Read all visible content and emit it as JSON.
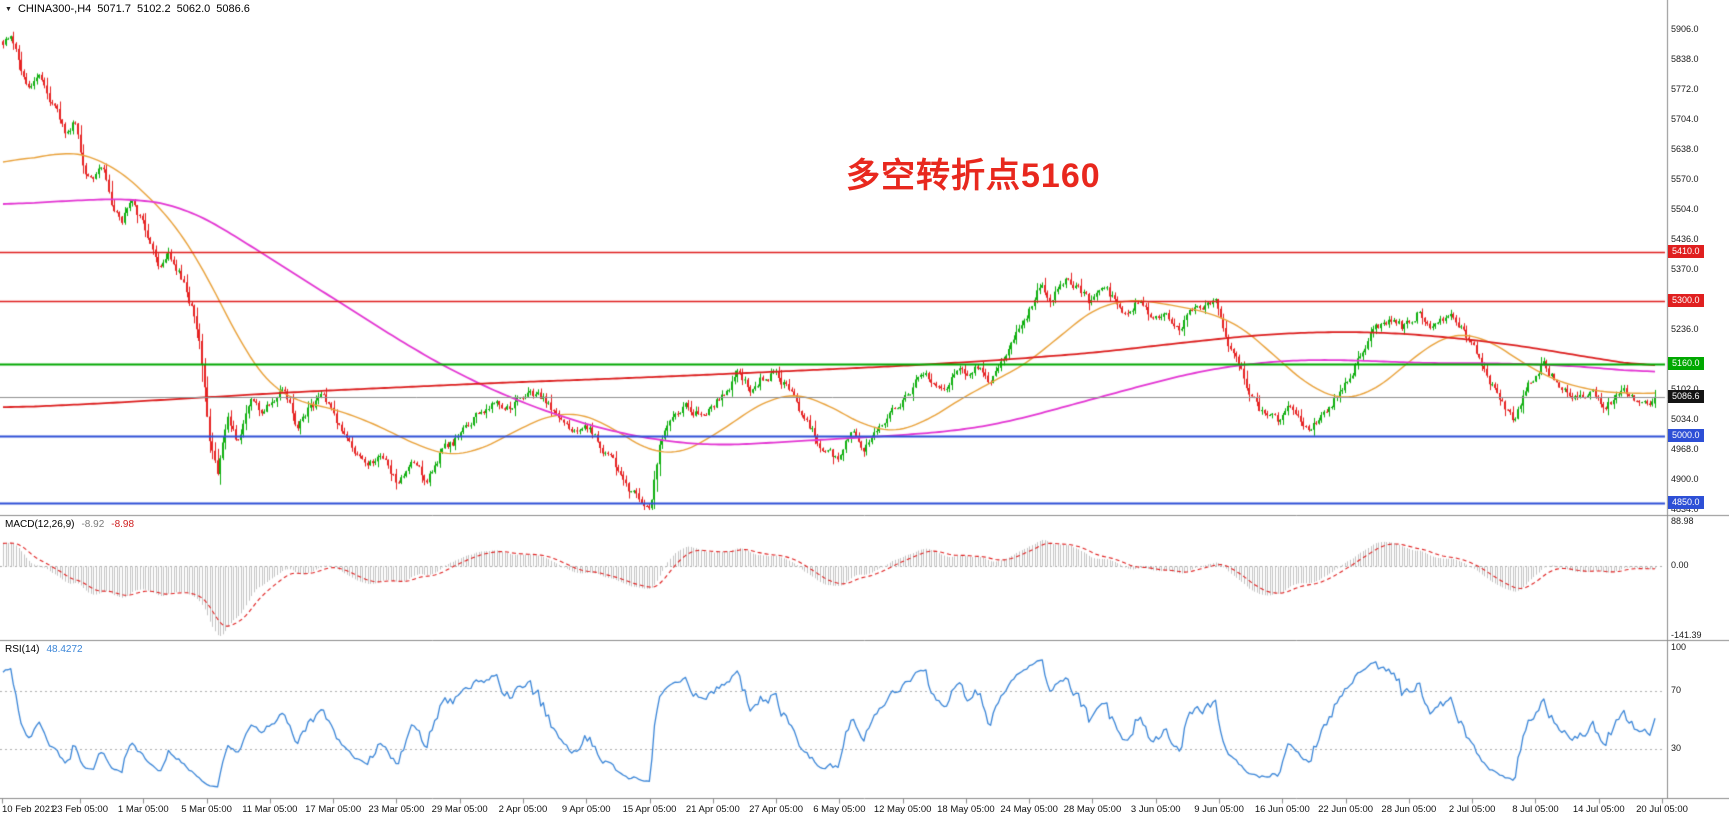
{
  "header": {
    "dropdown_icon": "▼",
    "symbol_timeframe": "CHINA300-,H4",
    "open": "5071.7",
    "high": "5102.2",
    "low": "5062.0",
    "close": "5086.6"
  },
  "annotation": {
    "text": "多空转折点5160",
    "color": "#e8281e"
  },
  "chart_data": {
    "type": "candlestick",
    "symbol": "CHINA300-",
    "timeframe": "H4",
    "bars": 640,
    "current_bar": {
      "open": 5071.7,
      "high": 5102.2,
      "low": 5062.0,
      "close": 5086.6
    },
    "current_price": {
      "value": 5086.6,
      "label": "5086.6",
      "line_color": "#909090",
      "badge_color": "#141414"
    },
    "price_axis": {
      "min": 4834.0,
      "max": 5906.0,
      "labels": [
        5906.0,
        5838.0,
        5772.0,
        5704.0,
        5638.0,
        5570.0,
        5504.0,
        5436.0,
        5370.0,
        5236.0,
        5102.0,
        5034.0,
        4968.0,
        4900.0,
        4834.0
      ]
    },
    "horizontal_lines": [
      {
        "price": 5410.0,
        "label": "5410.0",
        "color": "#e01f1f",
        "width": 1.6
      },
      {
        "price": 5300.0,
        "label": "5300.0",
        "color": "#e01f1f",
        "width": 1.6
      },
      {
        "price": 5160.0,
        "label": "5160.0",
        "color": "#00a800",
        "width": 2.2
      },
      {
        "price": 5000.0,
        "label": "5000.0",
        "color": "#2d4fd6",
        "width": 2.0
      },
      {
        "price": 4850.0,
        "label": "4850.0",
        "color": "#2d4fd6",
        "width": 2.0
      }
    ],
    "x_axis": {
      "labels": [
        "10 Feb 2021",
        "23 Feb 05:00",
        "1 Mar 05:00",
        "5 Mar 05:00",
        "11 Mar 05:00",
        "17 Mar 05:00",
        "23 Mar 05:00",
        "29 Mar 05:00",
        "2 Apr 05:00",
        "9 Apr 05:00",
        "15 Apr 05:00",
        "21 Apr 05:00",
        "27 Apr 05:00",
        "6 May 05:00",
        "12 May 05:00",
        "18 May 05:00",
        "24 May 05:00",
        "28 May 05:00",
        "3 Jun 05:00",
        "9 Jun 05:00",
        "16 Jun 05:00",
        "22 Jun 05:00",
        "28 Jun 05:00",
        "2 Jul 05:00",
        "8 Jul 05:00",
        "14 Jul 05:00",
        "20 Jul 05:00"
      ]
    },
    "price_path_anchors": [
      [
        0.0,
        5868
      ],
      [
        0.004,
        5900
      ],
      [
        0.01,
        5830
      ],
      [
        0.016,
        5780
      ],
      [
        0.022,
        5820
      ],
      [
        0.03,
        5740
      ],
      [
        0.038,
        5680
      ],
      [
        0.044,
        5700
      ],
      [
        0.049,
        5600
      ],
      [
        0.055,
        5560
      ],
      [
        0.06,
        5610
      ],
      [
        0.066,
        5520
      ],
      [
        0.072,
        5480
      ],
      [
        0.078,
        5540
      ],
      [
        0.087,
        5450
      ],
      [
        0.095,
        5380
      ],
      [
        0.1,
        5420
      ],
      [
        0.108,
        5350
      ],
      [
        0.115,
        5280
      ],
      [
        0.12,
        5180
      ],
      [
        0.125,
        4990
      ],
      [
        0.13,
        4920
      ],
      [
        0.136,
        5040
      ],
      [
        0.142,
        4980
      ],
      [
        0.15,
        5090
      ],
      [
        0.157,
        5050
      ],
      [
        0.163,
        5080
      ],
      [
        0.17,
        5120
      ],
      [
        0.178,
        5020
      ],
      [
        0.185,
        5060
      ],
      [
        0.193,
        5090
      ],
      [
        0.201,
        5040
      ],
      [
        0.21,
        4980
      ],
      [
        0.218,
        4930
      ],
      [
        0.227,
        4960
      ],
      [
        0.239,
        4890
      ],
      [
        0.248,
        4940
      ],
      [
        0.256,
        4900
      ],
      [
        0.265,
        4960
      ],
      [
        0.277,
        5000
      ],
      [
        0.288,
        5050
      ],
      [
        0.298,
        5080
      ],
      [
        0.307,
        5060
      ],
      [
        0.315,
        5080
      ],
      [
        0.324,
        5100
      ],
      [
        0.333,
        5060
      ],
      [
        0.343,
        5010
      ],
      [
        0.354,
        5020
      ],
      [
        0.362,
        4980
      ],
      [
        0.371,
        4930
      ],
      [
        0.38,
        4870
      ],
      [
        0.3915,
        4840
      ],
      [
        0.398,
        4990
      ],
      [
        0.405,
        5030
      ],
      [
        0.413,
        5070
      ],
      [
        0.42,
        5050
      ],
      [
        0.429,
        5060
      ],
      [
        0.437,
        5100
      ],
      [
        0.445,
        5140
      ],
      [
        0.452,
        5100
      ],
      [
        0.46,
        5130
      ],
      [
        0.468,
        5140
      ],
      [
        0.476,
        5100
      ],
      [
        0.484,
        5040
      ],
      [
        0.493,
        4990
      ],
      [
        0.5055,
        4940
      ],
      [
        0.513,
        5010
      ],
      [
        0.521,
        4980
      ],
      [
        0.53,
        5030
      ],
      [
        0.543,
        5060
      ],
      [
        0.551,
        5110
      ],
      [
        0.558,
        5150
      ],
      [
        0.566,
        5110
      ],
      [
        0.5817,
        5140
      ],
      [
        0.59,
        5160
      ],
      [
        0.597,
        5120
      ],
      [
        0.605,
        5170
      ],
      [
        0.6195,
        5270
      ],
      [
        0.628,
        5340
      ],
      [
        0.635,
        5310
      ],
      [
        0.645,
        5350
      ],
      [
        0.6573,
        5300
      ],
      [
        0.668,
        5320
      ],
      [
        0.678,
        5280
      ],
      [
        0.688,
        5300
      ],
      [
        0.6957,
        5260
      ],
      [
        0.704,
        5280
      ],
      [
        0.712,
        5240
      ],
      [
        0.722,
        5280
      ],
      [
        0.7335,
        5300
      ],
      [
        0.742,
        5210
      ],
      [
        0.752,
        5120
      ],
      [
        0.762,
        5050
      ],
      [
        0.7719,
        5030
      ],
      [
        0.78,
        5060
      ],
      [
        0.789,
        5010
      ],
      [
        0.8,
        5050
      ],
      [
        0.8097,
        5100
      ],
      [
        0.82,
        5170
      ],
      [
        0.829,
        5230
      ],
      [
        0.838,
        5260
      ],
      [
        0.8475,
        5240
      ],
      [
        0.857,
        5280
      ],
      [
        0.866,
        5240
      ],
      [
        0.876,
        5260
      ],
      [
        0.8859,
        5220
      ],
      [
        0.895,
        5160
      ],
      [
        0.905,
        5090
      ],
      [
        0.914,
        5030
      ],
      [
        0.9237,
        5120
      ],
      [
        0.932,
        5160
      ],
      [
        0.941,
        5120
      ],
      [
        0.951,
        5080
      ],
      [
        0.9615,
        5100
      ],
      [
        0.97,
        5060
      ],
      [
        0.98,
        5100
      ],
      [
        0.99,
        5070
      ],
      [
        1.0,
        5087
      ]
    ],
    "ma_lines": [
      {
        "name": "ma-fast-orange",
        "color": "#e9a23b",
        "width": 1.4,
        "anchors": [
          [
            0,
            5600
          ],
          [
            0.03,
            5635
          ],
          [
            0.06,
            5625
          ],
          [
            0.09,
            5530
          ],
          [
            0.11,
            5450
          ],
          [
            0.125,
            5350
          ],
          [
            0.14,
            5230
          ],
          [
            0.155,
            5130
          ],
          [
            0.17,
            5080
          ],
          [
            0.19,
            5070
          ],
          [
            0.21,
            5050
          ],
          [
            0.24,
            5000
          ],
          [
            0.26,
            4960
          ],
          [
            0.28,
            4950
          ],
          [
            0.3,
            4990
          ],
          [
            0.32,
            5030
          ],
          [
            0.34,
            5060
          ],
          [
            0.36,
            5040
          ],
          [
            0.38,
            4990
          ],
          [
            0.4,
            4945
          ],
          [
            0.42,
            4975
          ],
          [
            0.44,
            5025
          ],
          [
            0.46,
            5075
          ],
          [
            0.47,
            5100
          ],
          [
            0.49,
            5090
          ],
          [
            0.51,
            5045
          ],
          [
            0.53,
            5005
          ],
          [
            0.55,
            5010
          ],
          [
            0.57,
            5060
          ],
          [
            0.59,
            5105
          ],
          [
            0.61,
            5140
          ],
          [
            0.63,
            5185
          ],
          [
            0.65,
            5260
          ],
          [
            0.67,
            5305
          ],
          [
            0.7,
            5300
          ],
          [
            0.72,
            5280
          ],
          [
            0.74,
            5270
          ],
          [
            0.76,
            5215
          ],
          [
            0.78,
            5140
          ],
          [
            0.8,
            5085
          ],
          [
            0.82,
            5075
          ],
          [
            0.84,
            5125
          ],
          [
            0.855,
            5180
          ],
          [
            0.87,
            5225
          ],
          [
            0.89,
            5235
          ],
          [
            0.91,
            5190
          ],
          [
            0.93,
            5135
          ],
          [
            0.95,
            5110
          ],
          [
            0.965,
            5100
          ],
          [
            0.98,
            5090
          ],
          [
            1,
            5100
          ]
        ]
      },
      {
        "name": "ma-mid-magenta",
        "color": "#e336d3",
        "width": 1.8,
        "anchors": [
          [
            0,
            5515
          ],
          [
            0.04,
            5525
          ],
          [
            0.08,
            5530
          ],
          [
            0.11,
            5510
          ],
          [
            0.13,
            5470
          ],
          [
            0.16,
            5400
          ],
          [
            0.19,
            5330
          ],
          [
            0.22,
            5260
          ],
          [
            0.25,
            5190
          ],
          [
            0.28,
            5130
          ],
          [
            0.31,
            5080
          ],
          [
            0.34,
            5040
          ],
          [
            0.37,
            5008
          ],
          [
            0.4,
            4988
          ],
          [
            0.43,
            4978
          ],
          [
            0.46,
            4983
          ],
          [
            0.5,
            4992
          ],
          [
            0.54,
            5000
          ],
          [
            0.58,
            5012
          ],
          [
            0.61,
            5032
          ],
          [
            0.64,
            5062
          ],
          [
            0.67,
            5092
          ],
          [
            0.7,
            5122
          ],
          [
            0.73,
            5148
          ],
          [
            0.76,
            5163
          ],
          [
            0.79,
            5170
          ],
          [
            0.82,
            5168
          ],
          [
            0.86,
            5162
          ],
          [
            0.9,
            5162
          ],
          [
            0.94,
            5158
          ],
          [
            0.97,
            5150
          ],
          [
            1,
            5140
          ]
        ]
      },
      {
        "name": "ma-slow-red",
        "color": "#dc1f1f",
        "width": 1.8,
        "anchors": [
          [
            0,
            5062
          ],
          [
            0.06,
            5072
          ],
          [
            0.12,
            5085
          ],
          [
            0.18,
            5098
          ],
          [
            0.24,
            5108
          ],
          [
            0.3,
            5118
          ],
          [
            0.36,
            5126
          ],
          [
            0.42,
            5135
          ],
          [
            0.48,
            5145
          ],
          [
            0.54,
            5155
          ],
          [
            0.6,
            5168
          ],
          [
            0.66,
            5185
          ],
          [
            0.72,
            5210
          ],
          [
            0.76,
            5225
          ],
          [
            0.8,
            5232
          ],
          [
            0.84,
            5230
          ],
          [
            0.88,
            5218
          ],
          [
            0.92,
            5200
          ],
          [
            0.96,
            5175
          ],
          [
            1,
            5152
          ]
        ]
      }
    ],
    "indicators": [
      {
        "id": "macd",
        "label": "MACD(12,26,9)",
        "values": [
          "-8.92",
          "-8.98"
        ],
        "axis": [
          {
            "v": 88.98,
            "label": "88.98"
          },
          {
            "v": 0,
            "label": "0.00"
          },
          {
            "v": -141.39,
            "label": "-141.39"
          }
        ],
        "range": [
          -141.39,
          88.98
        ]
      },
      {
        "id": "rsi",
        "label": "RSI(14)",
        "values": [
          "48.4272"
        ],
        "axis": [
          {
            "v": 100,
            "label": "100"
          },
          {
            "v": 70,
            "label": "70"
          },
          {
            "v": 30,
            "label": "30"
          }
        ],
        "levels": [
          70,
          30
        ]
      }
    ],
    "colors": {
      "up": "#0faf0f",
      "down": "#e62222",
      "macd_hist": "#c4c4c4",
      "macd_signal": "#e02020",
      "rsi": "#3b86d8",
      "separator": "#8c8c8c",
      "axis_text": "#1a1a1a"
    }
  }
}
